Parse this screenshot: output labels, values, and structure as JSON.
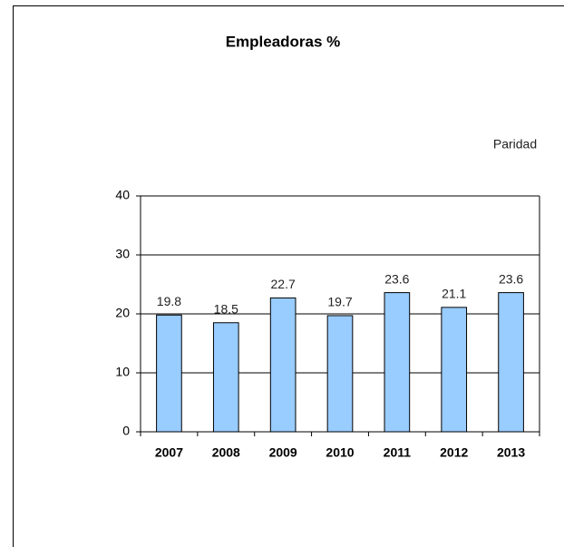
{
  "chart_data": {
    "type": "bar",
    "title": "Empleadoras %",
    "annotation": "Paridad",
    "categories": [
      "2007",
      "2008",
      "2009",
      "2010",
      "2011",
      "2012",
      "2013"
    ],
    "values": [
      19.8,
      18.5,
      22.7,
      19.7,
      23.6,
      21.1,
      23.6
    ],
    "color": "#99ccff",
    "ylim": [
      0,
      40
    ],
    "yticks": [
      0,
      10,
      20,
      30,
      40
    ],
    "grid": true
  }
}
